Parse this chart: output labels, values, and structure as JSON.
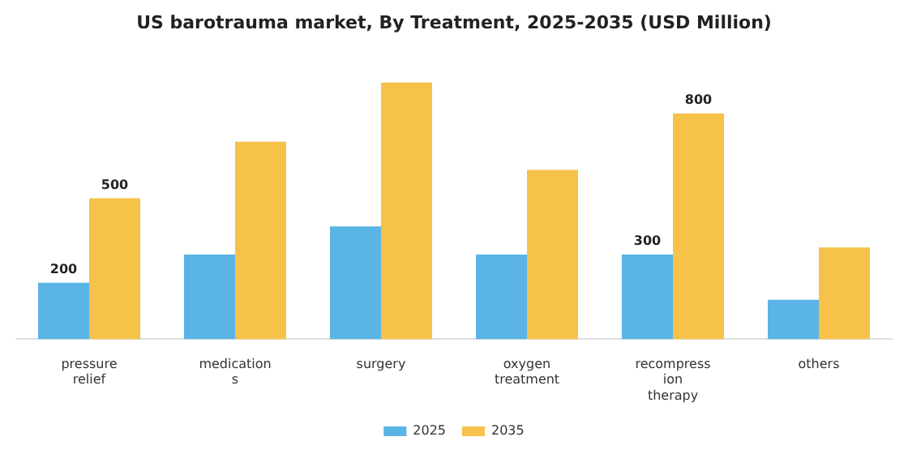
{
  "chart_data": {
    "type": "bar",
    "title": "US barotrauma market, By Treatment, 2025-2035 (USD Million)",
    "categories": [
      "pressure\nrelief",
      "medication\ns",
      "surgery",
      "oxygen\ntreatment",
      "recompress\nion\ntherapy",
      "others"
    ],
    "series": [
      {
        "name": "2025",
        "color": "#5ab4e5",
        "values": [
          200,
          300,
          400,
          300,
          300,
          140
        ],
        "value_labels": [
          "200",
          null,
          null,
          null,
          "300",
          null
        ]
      },
      {
        "name": "2035",
        "color": "#f6c24a",
        "values": [
          500,
          700,
          910,
          600,
          800,
          325
        ],
        "value_labels": [
          "500",
          null,
          null,
          null,
          "800",
          null
        ]
      }
    ],
    "legend": "bottom",
    "grid": false
  }
}
